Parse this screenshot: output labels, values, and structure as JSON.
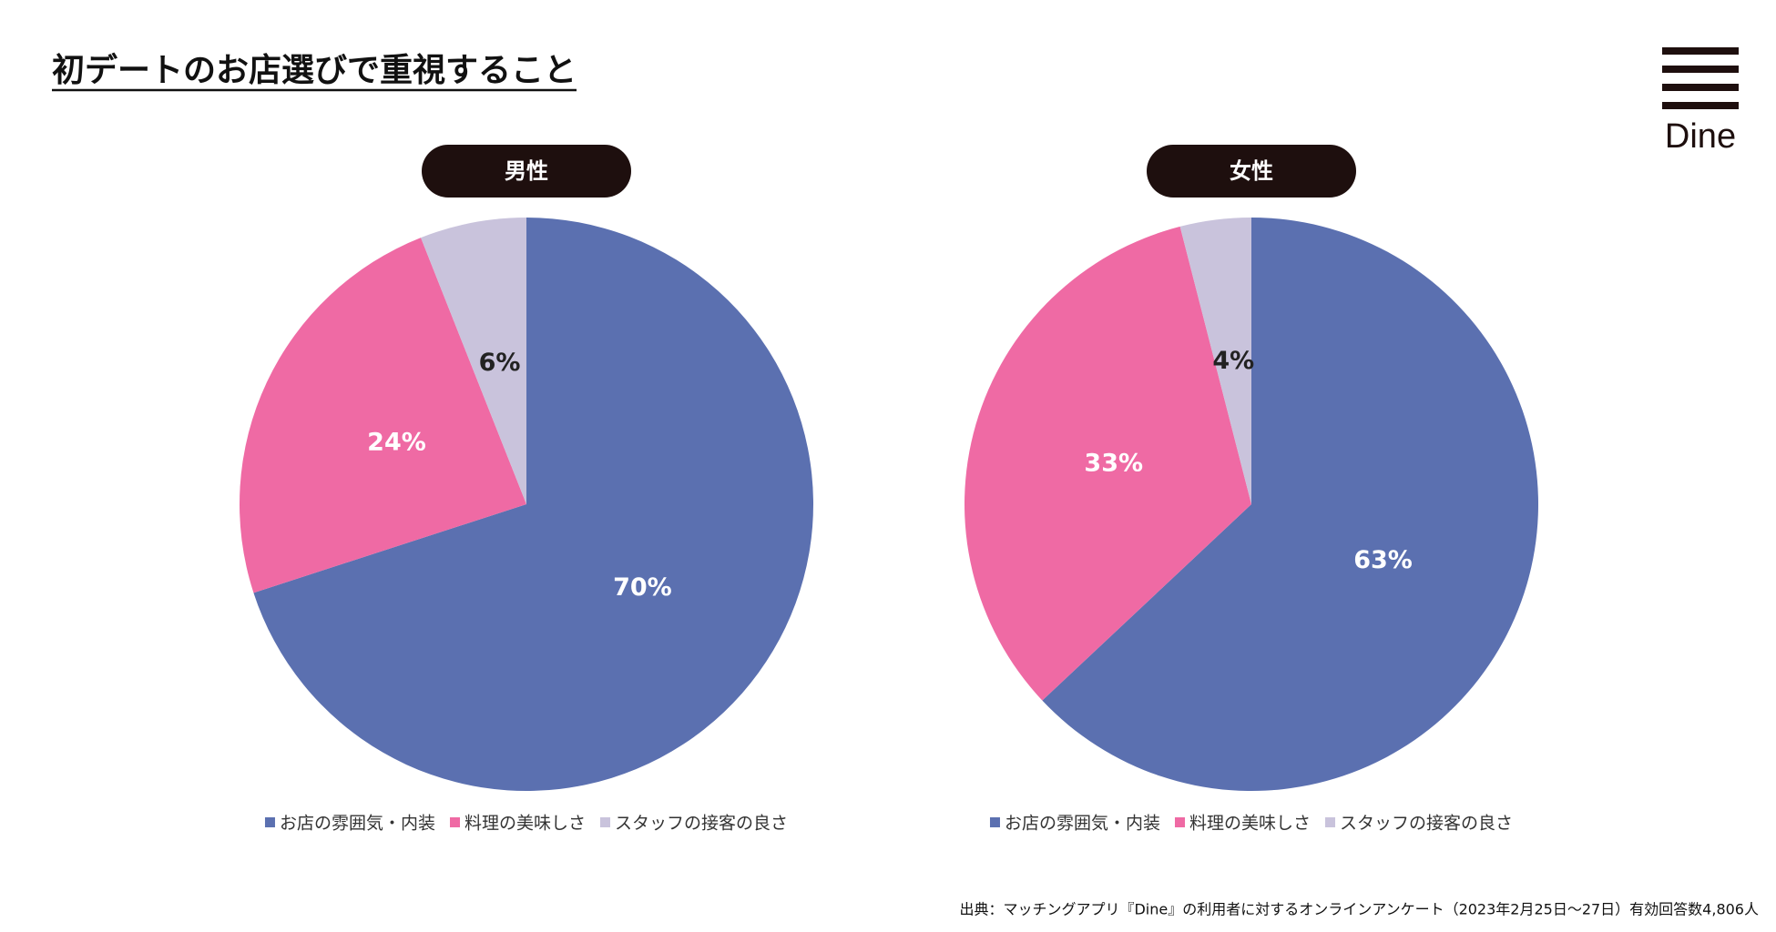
{
  "title": "初デートのお店選びで重視すること",
  "logo": "Dine",
  "source": "出典：マッチングアプリ『Dine』の利用者に対するオンラインアンケート（2023年2月25日〜27日）有効回答数4,806人",
  "chart_data": [
    {
      "type": "pie",
      "title": "男性",
      "categories": [
        "お店の雰囲気・内装",
        "料理の美味しさ",
        "スタッフの接客の良さ"
      ],
      "values": [
        70,
        24,
        6
      ],
      "value_labels": [
        "70%",
        "24%",
        "6%"
      ],
      "colors": [
        "#5b70b0",
        "#ef6aa4",
        "#c9c3dc"
      ]
    },
    {
      "type": "pie",
      "title": "女性",
      "categories": [
        "お店の雰囲気・内装",
        "料理の美味しさ",
        "スタッフの接客の良さ"
      ],
      "values": [
        63,
        33,
        4
      ],
      "value_labels": [
        "63%",
        "33%",
        "4%"
      ],
      "colors": [
        "#5b70b0",
        "#ef6aa4",
        "#c9c3dc"
      ]
    }
  ]
}
